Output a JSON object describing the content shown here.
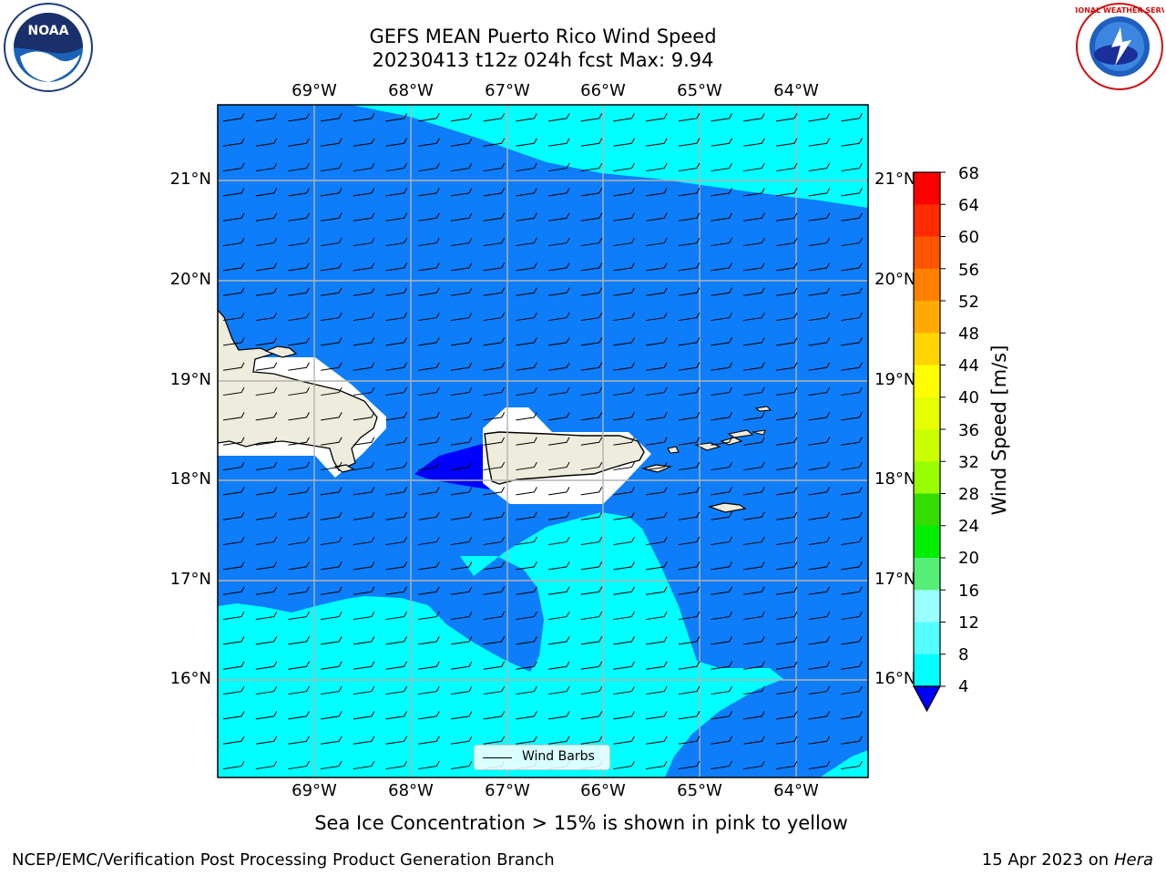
{
  "title": {
    "line1": "GEFS MEAN Puerto Rico Wind Speed",
    "line2": "20230413 t12z 024h fcst   Max: 9.94"
  },
  "map": {
    "lon_labels": [
      "69°W",
      "68°W",
      "67°W",
      "66°W",
      "65°W",
      "64°W"
    ],
    "lat_labels": [
      "21°N",
      "20°N",
      "19°N",
      "18°N",
      "17°N",
      "16°N"
    ],
    "lon_extent": [
      -70.0,
      -63.25
    ],
    "lat_extent": [
      15.0,
      21.75
    ],
    "ocean_color": "#0d7dfa",
    "calm_color": "#0000ff",
    "breeze_color": "#00ffff",
    "land_color": "#eeecdc",
    "grid": true,
    "wind_direction": "easterly",
    "legend_label": "Wind Barbs"
  },
  "colorbar": {
    "label": "Wind Speed [m/s]",
    "ticks": [
      "68",
      "64",
      "60",
      "56",
      "52",
      "48",
      "44",
      "40",
      "36",
      "32",
      "28",
      "24",
      "20",
      "16",
      "12",
      "8",
      "4"
    ],
    "colors": [
      "#ff0000",
      "#ff2a00",
      "#ff5500",
      "#ff8000",
      "#ffaa00",
      "#ffd400",
      "#ffff00",
      "#e6ff00",
      "#ccff00",
      "#99ff00",
      "#33dd00",
      "#00ee00",
      "#55ee77",
      "#99ffff",
      "#55ffff",
      "#00ffff",
      "#0d7dfa"
    ],
    "under_color": "#0000ff"
  },
  "note": "Sea Ice Concentration > 15% is shown in pink to yellow",
  "footer": {
    "left": "NCEP/EMC/Verification Post Processing Product Generation Branch",
    "date": "15 Apr 2023 on ",
    "machine": "Hera"
  },
  "logos": {
    "left": "noaa-logo",
    "right": "nws-logo",
    "left_text": "NOAA",
    "right_text": "NATIONAL WEATHER SERVICE"
  }
}
